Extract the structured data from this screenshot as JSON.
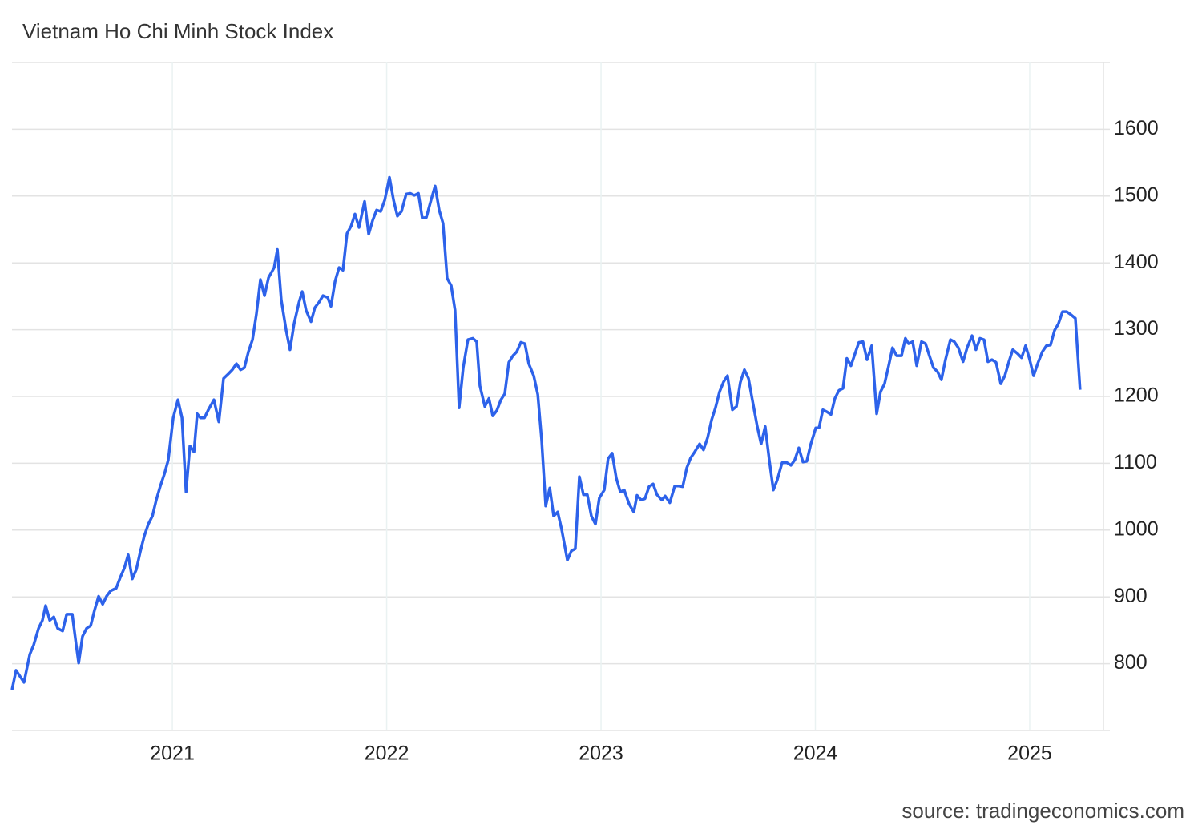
{
  "chart_data": {
    "type": "line",
    "title": "Vietnam Ho Chi Minh Stock Index",
    "source": "source: tradingeconomics.com",
    "color": "#2d62ea",
    "grid": true,
    "xlim": [
      2020.252,
      2025.344
    ],
    "xticks": [
      2021,
      2022,
      2023,
      2024,
      2025
    ],
    "ylim": [
      700,
      1700
    ],
    "yticks": [
      800,
      900,
      1000,
      1100,
      1200,
      1300,
      1400,
      1500,
      1600
    ],
    "x": [
      2020.252,
      2020.271,
      2020.308,
      2020.335,
      2020.353,
      2020.376,
      2020.394,
      2020.409,
      2020.428,
      2020.447,
      2020.465,
      2020.488,
      2020.507,
      2020.533,
      2020.551,
      2020.563,
      2020.581,
      2020.6,
      2020.619,
      2020.637,
      2020.656,
      2020.675,
      2020.693,
      2020.712,
      2020.738,
      2020.757,
      2020.776,
      2020.794,
      2020.813,
      2020.832,
      2020.85,
      2020.869,
      2020.888,
      2020.907,
      2020.925,
      2020.944,
      2020.963,
      2020.981,
      2021.004,
      2021.026,
      2021.045,
      2021.064,
      2021.082,
      2021.101,
      2021.116,
      2021.131,
      2021.15,
      2021.168,
      2021.194,
      2021.217,
      2021.239,
      2021.262,
      2021.28,
      2021.299,
      2021.318,
      2021.336,
      2021.355,
      2021.374,
      2021.392,
      2021.411,
      2021.43,
      2021.449,
      2021.475,
      2021.49,
      2021.508,
      2021.531,
      2021.549,
      2021.568,
      2021.591,
      2021.606,
      2021.624,
      2021.647,
      2021.665,
      2021.684,
      2021.703,
      2021.725,
      2021.74,
      2021.759,
      2021.778,
      2021.796,
      2021.815,
      2021.834,
      2021.852,
      2021.871,
      2021.897,
      2021.916,
      2021.935,
      2021.953,
      2021.972,
      2021.991,
      2022.013,
      2022.032,
      2022.05,
      2022.069,
      2022.091,
      2022.11,
      2022.129,
      2022.148,
      2022.166,
      2022.185,
      2022.207,
      2022.226,
      2022.245,
      2022.263,
      2022.282,
      2022.301,
      2022.319,
      2022.338,
      2022.357,
      2022.379,
      2022.402,
      2022.42,
      2022.435,
      2022.458,
      2022.477,
      2022.495,
      2022.514,
      2022.533,
      2022.551,
      2022.57,
      2022.589,
      2022.607,
      2022.626,
      2022.645,
      2022.663,
      2022.686,
      2022.705,
      2022.723,
      2022.742,
      2022.761,
      2022.779,
      2022.798,
      2022.817,
      2022.843,
      2022.862,
      2022.88,
      2022.899,
      2022.918,
      2022.936,
      2022.955,
      2022.974,
      2022.992,
      2023.015,
      2023.033,
      2023.052,
      2023.071,
      2023.09,
      2023.108,
      2023.131,
      2023.153,
      2023.168,
      2023.187,
      2023.205,
      2023.224,
      2023.243,
      2023.261,
      2023.284,
      2023.299,
      2023.321,
      2023.344,
      2023.362,
      2023.381,
      2023.4,
      2023.418,
      2023.437,
      2023.46,
      2023.478,
      2023.497,
      2023.516,
      2023.534,
      2023.553,
      2023.572,
      2023.59,
      2023.613,
      2023.632,
      2023.65,
      2023.669,
      2023.688,
      2023.706,
      2023.729,
      2023.747,
      2023.766,
      2023.785,
      2023.804,
      2023.822,
      2023.845,
      2023.867,
      2023.886,
      2023.904,
      2023.923,
      2023.942,
      2023.96,
      2023.979,
      2024.002,
      2024.017,
      2024.035,
      2024.054,
      2024.073,
      2024.091,
      2024.11,
      2024.129,
      2024.147,
      2024.166,
      2024.185,
      2024.203,
      2024.222,
      2024.241,
      2024.263,
      2024.286,
      2024.304,
      2024.323,
      2024.342,
      2024.36,
      2024.379,
      2024.402,
      2024.42,
      2024.435,
      2024.454,
      2024.473,
      2024.495,
      2024.514,
      2024.532,
      2024.551,
      2024.57,
      2024.588,
      2024.607,
      2024.63,
      2024.648,
      2024.667,
      2024.689,
      2024.708,
      2024.731,
      2024.749,
      2024.768,
      2024.787,
      2024.805,
      2024.824,
      2024.843,
      2024.865,
      2024.884,
      2024.902,
      2024.921,
      2024.944,
      2024.962,
      2024.981,
      2025.0,
      2025.018,
      2025.037,
      2025.059,
      2025.078,
      2025.097,
      2025.116,
      2025.134,
      2025.153,
      2025.172,
      2025.19,
      2025.213,
      2025.235
    ],
    "values": [
      761,
      790,
      772,
      814,
      828,
      853,
      865,
      887,
      865,
      870,
      853,
      849,
      874,
      874,
      829,
      801,
      841,
      853,
      857,
      880,
      901,
      889,
      901,
      909,
      913,
      929,
      943,
      963,
      927,
      941,
      967,
      991,
      1009,
      1021,
      1045,
      1066,
      1084,
      1105,
      1168,
      1195,
      1168,
      1057,
      1126,
      1117,
      1174,
      1168,
      1168,
      1180,
      1195,
      1162,
      1227,
      1234,
      1240,
      1249,
      1240,
      1243,
      1267,
      1285,
      1323,
      1375,
      1351,
      1378,
      1393,
      1420,
      1345,
      1299,
      1270,
      1309,
      1341,
      1357,
      1329,
      1312,
      1333,
      1341,
      1351,
      1348,
      1335,
      1372,
      1393,
      1389,
      1444,
      1455,
      1473,
      1453,
      1492,
      1443,
      1464,
      1479,
      1477,
      1494,
      1528,
      1494,
      1470,
      1477,
      1503,
      1504,
      1501,
      1504,
      1467,
      1468,
      1494,
      1515,
      1479,
      1459,
      1377,
      1366,
      1329,
      1183,
      1243,
      1285,
      1287,
      1282,
      1216,
      1185,
      1197,
      1171,
      1179,
      1195,
      1204,
      1251,
      1261,
      1267,
      1281,
      1279,
      1249,
      1231,
      1203,
      1135,
      1036,
      1063,
      1021,
      1027,
      1000,
      955,
      969,
      972,
      1080,
      1053,
      1053,
      1021,
      1009,
      1048,
      1060,
      1107,
      1115,
      1078,
      1057,
      1060,
      1039,
      1027,
      1052,
      1045,
      1047,
      1065,
      1069,
      1053,
      1045,
      1051,
      1041,
      1066,
      1066,
      1065,
      1093,
      1108,
      1117,
      1129,
      1120,
      1138,
      1165,
      1183,
      1207,
      1222,
      1231,
      1180,
      1185,
      1221,
      1240,
      1227,
      1195,
      1155,
      1129,
      1155,
      1105,
      1060,
      1075,
      1101,
      1101,
      1097,
      1105,
      1123,
      1102,
      1103,
      1129,
      1153,
      1153,
      1180,
      1177,
      1173,
      1197,
      1209,
      1212,
      1257,
      1246,
      1264,
      1281,
      1282,
      1255,
      1276,
      1174,
      1207,
      1219,
      1246,
      1273,
      1261,
      1261,
      1287,
      1279,
      1282,
      1246,
      1282,
      1279,
      1261,
      1243,
      1237,
      1225,
      1255,
      1285,
      1282,
      1273,
      1252,
      1273,
      1291,
      1270,
      1287,
      1285,
      1252,
      1255,
      1251,
      1219,
      1231,
      1251,
      1270,
      1264,
      1258,
      1276,
      1255,
      1231,
      1249,
      1267,
      1276,
      1277,
      1299,
      1309,
      1327,
      1327,
      1323,
      1317,
      1210
    ]
  }
}
